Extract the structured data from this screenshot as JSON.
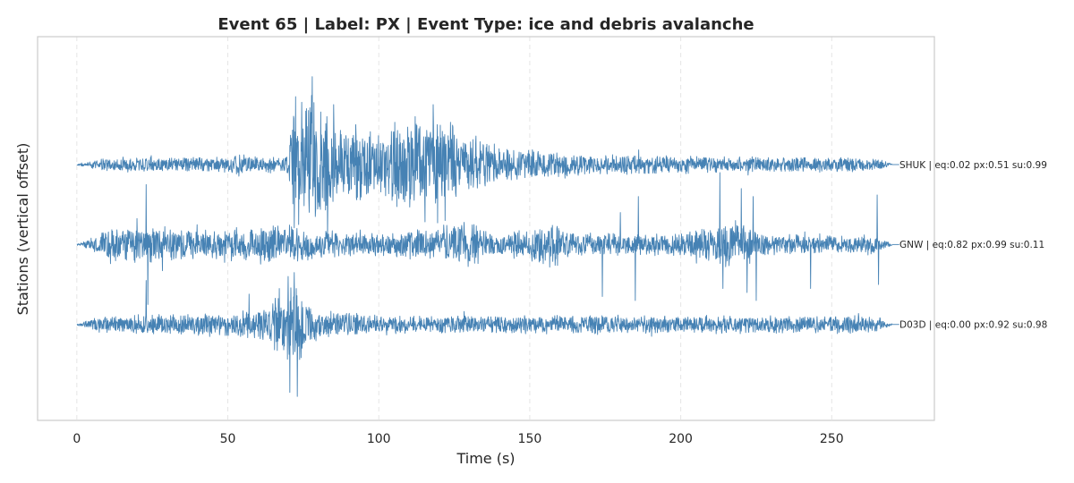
{
  "chart_data": {
    "type": "line",
    "title": "Event 65 | Label: PX | Event Type: ice and debris avalanche",
    "xlabel": "Time (s)",
    "ylabel": "Stations (vertical offset)",
    "xlim": [
      -13,
      284
    ],
    "ylim": [
      -3.2,
      1.6
    ],
    "xticks": [
      0,
      50,
      100,
      150,
      200,
      250
    ],
    "xtick_labels": [
      "0",
      "50",
      "100",
      "150",
      "200",
      "250"
    ],
    "grid": true,
    "legend": "none",
    "line_color": "#4682b4",
    "trace_duration_s": 270,
    "series": [
      {
        "name": "SHUK",
        "offset": 0,
        "label": "SHUK | eq:0.02 px:0.51 su:0.99",
        "probabilities": {
          "eq": 0.02,
          "px": 0.51,
          "su": 0.99
        },
        "envelope": [
          [
            0,
            0.01
          ],
          [
            5,
            0.05
          ],
          [
            10,
            0.1
          ],
          [
            30,
            0.1
          ],
          [
            50,
            0.1
          ],
          [
            53,
            0.18
          ],
          [
            56,
            0.12
          ],
          [
            70,
            0.12
          ],
          [
            72,
            0.9
          ],
          [
            74,
            0.6
          ],
          [
            78,
            1.05
          ],
          [
            80,
            0.8
          ],
          [
            90,
            0.55
          ],
          [
            100,
            0.45
          ],
          [
            110,
            0.65
          ],
          [
            120,
            0.7
          ],
          [
            125,
            0.55
          ],
          [
            130,
            0.4
          ],
          [
            140,
            0.25
          ],
          [
            150,
            0.22
          ],
          [
            170,
            0.15
          ],
          [
            200,
            0.12
          ],
          [
            230,
            0.1
          ],
          [
            260,
            0.1
          ],
          [
            268,
            0.05
          ],
          [
            270,
            0.01
          ]
        ],
        "spikes": [
          [
            72.5,
            0.85
          ],
          [
            73.5,
            -0.75
          ],
          [
            76,
            0.7
          ],
          [
            78,
            1.1
          ],
          [
            79,
            -0.65
          ],
          [
            85,
            0.75
          ],
          [
            112,
            0.6
          ],
          [
            118,
            0.75
          ],
          [
            122,
            -0.7
          ]
        ]
      },
      {
        "name": "GNW",
        "offset": -1,
        "label": "GNW | eq:0.82 px:0.99 su:0.11",
        "probabilities": {
          "eq": 0.82,
          "px": 0.99,
          "su": 0.11
        },
        "envelope": [
          [
            0,
            0.01
          ],
          [
            5,
            0.08
          ],
          [
            10,
            0.2
          ],
          [
            20,
            0.28
          ],
          [
            30,
            0.25
          ],
          [
            40,
            0.2
          ],
          [
            50,
            0.22
          ],
          [
            60,
            0.25
          ],
          [
            70,
            0.28
          ],
          [
            80,
            0.18
          ],
          [
            100,
            0.15
          ],
          [
            130,
            0.3
          ],
          [
            140,
            0.15
          ],
          [
            158,
            0.32
          ],
          [
            165,
            0.15
          ],
          [
            175,
            0.15
          ],
          [
            200,
            0.15
          ],
          [
            212,
            0.3
          ],
          [
            220,
            0.28
          ],
          [
            230,
            0.15
          ],
          [
            255,
            0.12
          ],
          [
            266,
            0.12
          ],
          [
            268,
            0.05
          ],
          [
            270,
            0.01
          ]
        ],
        "spikes": [
          [
            23,
            0.75
          ],
          [
            23.5,
            -0.75
          ],
          [
            174,
            -0.65
          ],
          [
            180,
            0.4
          ],
          [
            185,
            -0.7
          ],
          [
            186,
            0.6
          ],
          [
            213,
            0.9
          ],
          [
            214,
            -0.55
          ],
          [
            220,
            0.7
          ],
          [
            222,
            -0.6
          ],
          [
            224,
            0.6
          ],
          [
            225,
            -0.7
          ],
          [
            243,
            -0.55
          ],
          [
            265,
            0.62
          ],
          [
            265.5,
            -0.5
          ]
        ]
      },
      {
        "name": "D03D",
        "offset": -2,
        "label": "D03D | eq:0.00 px:0.92 su:0.98",
        "probabilities": {
          "eq": 0.0,
          "px": 0.92,
          "su": 0.98
        },
        "envelope": [
          [
            0,
            0.01
          ],
          [
            5,
            0.08
          ],
          [
            10,
            0.12
          ],
          [
            30,
            0.13
          ],
          [
            50,
            0.15
          ],
          [
            60,
            0.2
          ],
          [
            66,
            0.4
          ],
          [
            68,
            0.35
          ],
          [
            70,
            0.6
          ],
          [
            73,
            0.5
          ],
          [
            76,
            0.3
          ],
          [
            80,
            0.2
          ],
          [
            100,
            0.12
          ],
          [
            150,
            0.12
          ],
          [
            200,
            0.12
          ],
          [
            255,
            0.12
          ],
          [
            266,
            0.1
          ],
          [
            268,
            0.05
          ],
          [
            270,
            0.01
          ]
        ],
        "spikes": [
          [
            23,
            0.55
          ],
          [
            70,
            0.6
          ],
          [
            70.5,
            -0.85
          ],
          [
            72,
            0.65
          ],
          [
            73,
            -0.9
          ],
          [
            67,
            0.45
          ],
          [
            57,
            0.38
          ]
        ]
      }
    ]
  }
}
